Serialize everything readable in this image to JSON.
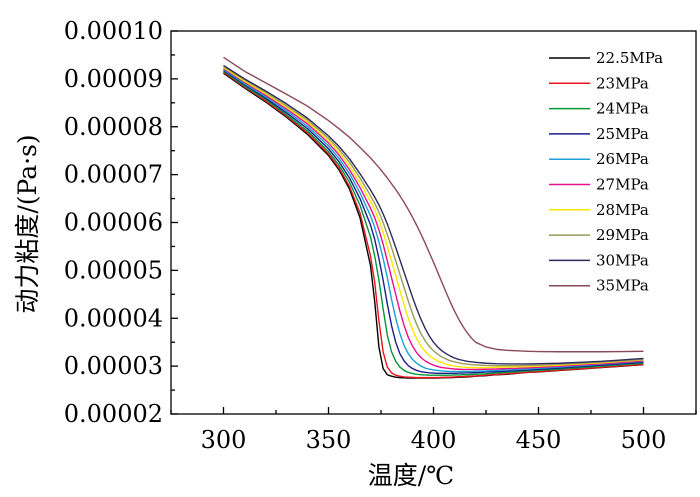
{
  "chart_data": {
    "type": "line",
    "title": "",
    "xlabel": "温度/℃",
    "ylabel": "动力粘度/(Pa·s)",
    "xlim": [
      275,
      525
    ],
    "ylim": [
      2e-05,
      0.0001
    ],
    "x_ticks": [
      300,
      350,
      400,
      450,
      500
    ],
    "y_ticks": [
      2e-05,
      3e-05,
      4e-05,
      5e-05,
      6e-05,
      7e-05,
      8e-05,
      9e-05,
      0.0001
    ],
    "x_tick_labels": [
      "300",
      "350",
      "400",
      "450",
      "500"
    ],
    "y_tick_labels": [
      "0.00002",
      "0.00003",
      "0.00004",
      "0.00005",
      "0.00006",
      "0.00007",
      "0.00008",
      "0.00009",
      "0.00010"
    ],
    "grid": false,
    "legend_position": "top-right",
    "x": [
      300,
      310,
      320,
      330,
      340,
      350,
      355,
      360,
      365,
      370,
      372,
      374,
      376,
      378,
      380,
      382,
      384,
      386,
      388,
      390,
      392,
      394,
      396,
      398,
      400,
      402,
      404,
      406,
      408,
      410,
      412,
      414,
      416,
      418,
      420,
      425,
      430,
      435,
      440,
      445,
      450,
      460,
      470,
      480,
      490,
      500
    ],
    "series": [
      {
        "name": "22.5MPa",
        "color": "#000000",
        "values": [
          9.12e-05,
          8.81e-05,
          8.52e-05,
          8.2e-05,
          7.84e-05,
          7.4e-05,
          7.1e-05,
          6.7e-05,
          6.1e-05,
          5.1e-05,
          4.35e-05,
          3.4e-05,
          2.95e-05,
          2.82e-05,
          2.79e-05,
          2.77e-05,
          2.76e-05,
          2.755e-05,
          2.75e-05,
          2.75e-05,
          2.75e-05,
          2.75e-05,
          2.75e-05,
          2.75e-05,
          2.75e-05,
          2.75e-05,
          2.755e-05,
          2.76e-05,
          2.76e-05,
          2.765e-05,
          2.77e-05,
          2.77e-05,
          2.775e-05,
          2.78e-05,
          2.79e-05,
          2.8e-05,
          2.82e-05,
          2.83e-05,
          2.85e-05,
          2.87e-05,
          2.88e-05,
          2.91e-05,
          2.94e-05,
          2.97e-05,
          3e-05,
          3.03e-05
        ]
      },
      {
        "name": "23MPa",
        "color": "#e8141b",
        "values": [
          9.14e-05,
          8.83e-05,
          8.54e-05,
          8.22e-05,
          7.87e-05,
          7.43e-05,
          7.14e-05,
          6.75e-05,
          6.2e-05,
          5.3e-05,
          4.75e-05,
          3.95e-05,
          3.3e-05,
          2.98e-05,
          2.86e-05,
          2.81e-05,
          2.79e-05,
          2.775e-05,
          2.77e-05,
          2.765e-05,
          2.76e-05,
          2.76e-05,
          2.76e-05,
          2.76e-05,
          2.76e-05,
          2.76e-05,
          2.765e-05,
          2.77e-05,
          2.77e-05,
          2.775e-05,
          2.78e-05,
          2.78e-05,
          2.785e-05,
          2.79e-05,
          2.795e-05,
          2.81e-05,
          2.825e-05,
          2.84e-05,
          2.855e-05,
          2.87e-05,
          2.885e-05,
          2.915e-05,
          2.945e-05,
          2.975e-05,
          3.005e-05,
          3.035e-05
        ]
      },
      {
        "name": "24MPa",
        "color": "#009639",
        "values": [
          9.16e-05,
          8.85e-05,
          8.57e-05,
          8.25e-05,
          7.91e-05,
          7.48e-05,
          7.2e-05,
          6.84e-05,
          6.36e-05,
          5.7e-05,
          5.3e-05,
          4.8e-05,
          4.2e-05,
          3.65e-05,
          3.3e-05,
          3.1e-05,
          2.98e-05,
          2.91e-05,
          2.87e-05,
          2.845e-05,
          2.83e-05,
          2.82e-05,
          2.815e-05,
          2.81e-05,
          2.81e-05,
          2.81e-05,
          2.81e-05,
          2.81e-05,
          2.81e-05,
          2.815e-05,
          2.815e-05,
          2.82e-05,
          2.82e-05,
          2.825e-05,
          2.83e-05,
          2.84e-05,
          2.855e-05,
          2.87e-05,
          2.885e-05,
          2.9e-05,
          2.91e-05,
          2.94e-05,
          2.97e-05,
          3e-05,
          3.03e-05,
          3.06e-05
        ]
      },
      {
        "name": "25MPa",
        "color": "#1d1d8c",
        "values": [
          9.18e-05,
          8.88e-05,
          8.6e-05,
          8.29e-05,
          7.96e-05,
          7.54e-05,
          7.27e-05,
          6.93e-05,
          6.5e-05,
          5.95e-05,
          5.65e-05,
          5.25e-05,
          4.8e-05,
          4.3e-05,
          3.85e-05,
          3.5e-05,
          3.26e-05,
          3.11e-05,
          3.01e-05,
          2.95e-05,
          2.91e-05,
          2.885e-05,
          2.87e-05,
          2.86e-05,
          2.855e-05,
          2.85e-05,
          2.85e-05,
          2.85e-05,
          2.85e-05,
          2.85e-05,
          2.855e-05,
          2.855e-05,
          2.86e-05,
          2.86e-05,
          2.865e-05,
          2.875e-05,
          2.885e-05,
          2.895e-05,
          2.91e-05,
          2.92e-05,
          2.935e-05,
          2.96e-05,
          2.99e-05,
          3.02e-05,
          3.05e-05,
          3.08e-05
        ]
      },
      {
        "name": "26MPa",
        "color": "#1aa0d8",
        "values": [
          9.2e-05,
          8.9e-05,
          8.63e-05,
          8.33e-05,
          8.01e-05,
          7.6e-05,
          7.34e-05,
          7.02e-05,
          6.62e-05,
          6.14e-05,
          5.9e-05,
          5.6e-05,
          5.25e-05,
          4.85e-05,
          4.4e-05,
          4e-05,
          3.68e-05,
          3.43e-05,
          3.26e-05,
          3.14e-05,
          3.06e-05,
          3e-05,
          2.96e-05,
          2.935e-05,
          2.92e-05,
          2.91e-05,
          2.9e-05,
          2.895e-05,
          2.89e-05,
          2.89e-05,
          2.89e-05,
          2.89e-05,
          2.89e-05,
          2.89e-05,
          2.895e-05,
          2.9e-05,
          2.91e-05,
          2.92e-05,
          2.93e-05,
          2.94e-05,
          2.955e-05,
          2.98e-05,
          3.01e-05,
          3.04e-05,
          3.07e-05,
          3.1e-05
        ]
      },
      {
        "name": "27MPa",
        "color": "#e8108b",
        "values": [
          9.22e-05,
          8.93e-05,
          8.66e-05,
          8.37e-05,
          8.06e-05,
          7.66e-05,
          7.41e-05,
          7.1e-05,
          6.73e-05,
          6.3e-05,
          6.1e-05,
          5.85e-05,
          5.55e-05,
          5.2e-05,
          4.85e-05,
          4.5e-05,
          4.15e-05,
          3.85e-05,
          3.6e-05,
          3.42e-05,
          3.28e-05,
          3.18e-05,
          3.11e-05,
          3.06e-05,
          3.02e-05,
          2.99e-05,
          2.97e-05,
          2.96e-05,
          2.95e-05,
          2.94e-05,
          2.935e-05,
          2.93e-05,
          2.93e-05,
          2.93e-05,
          2.93e-05,
          2.935e-05,
          2.94e-05,
          2.95e-05,
          2.955e-05,
          2.965e-05,
          2.975e-05,
          3e-05,
          3.025e-05,
          3.05e-05,
          3.08e-05,
          3.11e-05
        ]
      },
      {
        "name": "28MPa",
        "color": "#ffe600",
        "values": [
          9.24e-05,
          8.95e-05,
          8.69e-05,
          8.41e-05,
          8.1e-05,
          7.71e-05,
          7.47e-05,
          7.18e-05,
          6.83e-05,
          6.44e-05,
          6.27e-05,
          6.05e-05,
          5.8e-05,
          5.5e-05,
          5.2e-05,
          4.9e-05,
          4.58e-05,
          4.28e-05,
          4e-05,
          3.76e-05,
          3.57e-05,
          3.42e-05,
          3.31e-05,
          3.22e-05,
          3.16e-05,
          3.11e-05,
          3.07e-05,
          3.04e-05,
          3.02e-05,
          3e-05,
          2.99e-05,
          2.98e-05,
          2.975e-05,
          2.97e-05,
          2.97e-05,
          2.97e-05,
          2.975e-05,
          2.98e-05,
          2.985e-05,
          2.99e-05,
          3e-05,
          3.02e-05,
          3.045e-05,
          3.07e-05,
          3.1e-05,
          3.13e-05
        ]
      },
      {
        "name": "29MPa",
        "color": "#9a9a5a",
        "values": [
          9.26e-05,
          8.98e-05,
          8.72e-05,
          8.44e-05,
          8.14e-05,
          7.76e-05,
          7.53e-05,
          7.26e-05,
          6.93e-05,
          6.56e-05,
          6.4e-05,
          6.22e-05,
          6e-05,
          5.75e-05,
          5.48e-05,
          5.2e-05,
          4.92e-05,
          4.64e-05,
          4.36e-05,
          4.1e-05,
          3.87e-05,
          3.68e-05,
          3.53e-05,
          3.41e-05,
          3.32e-05,
          3.25e-05,
          3.19e-05,
          3.15e-05,
          3.11e-05,
          3.09e-05,
          3.07e-05,
          3.05e-05,
          3.04e-05,
          3.03e-05,
          3.025e-05,
          3.015e-05,
          3.01e-05,
          3.01e-05,
          3.01e-05,
          3.015e-05,
          3.02e-05,
          3.04e-05,
          3.06e-05,
          3.085e-05,
          3.11e-05,
          3.14e-05
        ]
      },
      {
        "name": "30MPa",
        "color": "#2b2b5e",
        "values": [
          9.28e-05,
          9e-05,
          8.75e-05,
          8.48e-05,
          8.18e-05,
          7.81e-05,
          7.59e-05,
          7.33e-05,
          7.02e-05,
          6.68e-05,
          6.53e-05,
          6.37e-05,
          6.18e-05,
          5.97e-05,
          5.73e-05,
          5.48e-05,
          5.22e-05,
          4.96e-05,
          4.7e-05,
          4.44e-05,
          4.2e-05,
          3.98e-05,
          3.79e-05,
          3.63e-05,
          3.5e-05,
          3.4e-05,
          3.32e-05,
          3.26e-05,
          3.21e-05,
          3.17e-05,
          3.14e-05,
          3.12e-05,
          3.1e-05,
          3.09e-05,
          3.08e-05,
          3.06e-05,
          3.05e-05,
          3.045e-05,
          3.045e-05,
          3.045e-05,
          3.05e-05,
          3.06e-05,
          3.08e-05,
          3.1e-05,
          3.13e-05,
          3.16e-05
        ]
      },
      {
        "name": "35MPa",
        "color": "#8a4a5a",
        "values": [
          9.45e-05,
          9.16e-05,
          8.92e-05,
          8.68e-05,
          8.43e-05,
          8.13e-05,
          7.96e-05,
          7.78e-05,
          7.57e-05,
          7.35e-05,
          7.25e-05,
          7.15e-05,
          7.04e-05,
          6.93e-05,
          6.81e-05,
          6.69e-05,
          6.56e-05,
          6.42e-05,
          6.27e-05,
          6.11e-05,
          5.94e-05,
          5.76e-05,
          5.57e-05,
          5.37e-05,
          5.17e-05,
          4.96e-05,
          4.75e-05,
          4.54e-05,
          4.34e-05,
          4.15e-05,
          3.98e-05,
          3.83e-05,
          3.7e-05,
          3.59e-05,
          3.5e-05,
          3.4e-05,
          3.35e-05,
          3.33e-05,
          3.32e-05,
          3.31e-05,
          3.305e-05,
          3.3e-05,
          3.3e-05,
          3.3e-05,
          3.305e-05,
          3.31e-05
        ]
      }
    ]
  }
}
